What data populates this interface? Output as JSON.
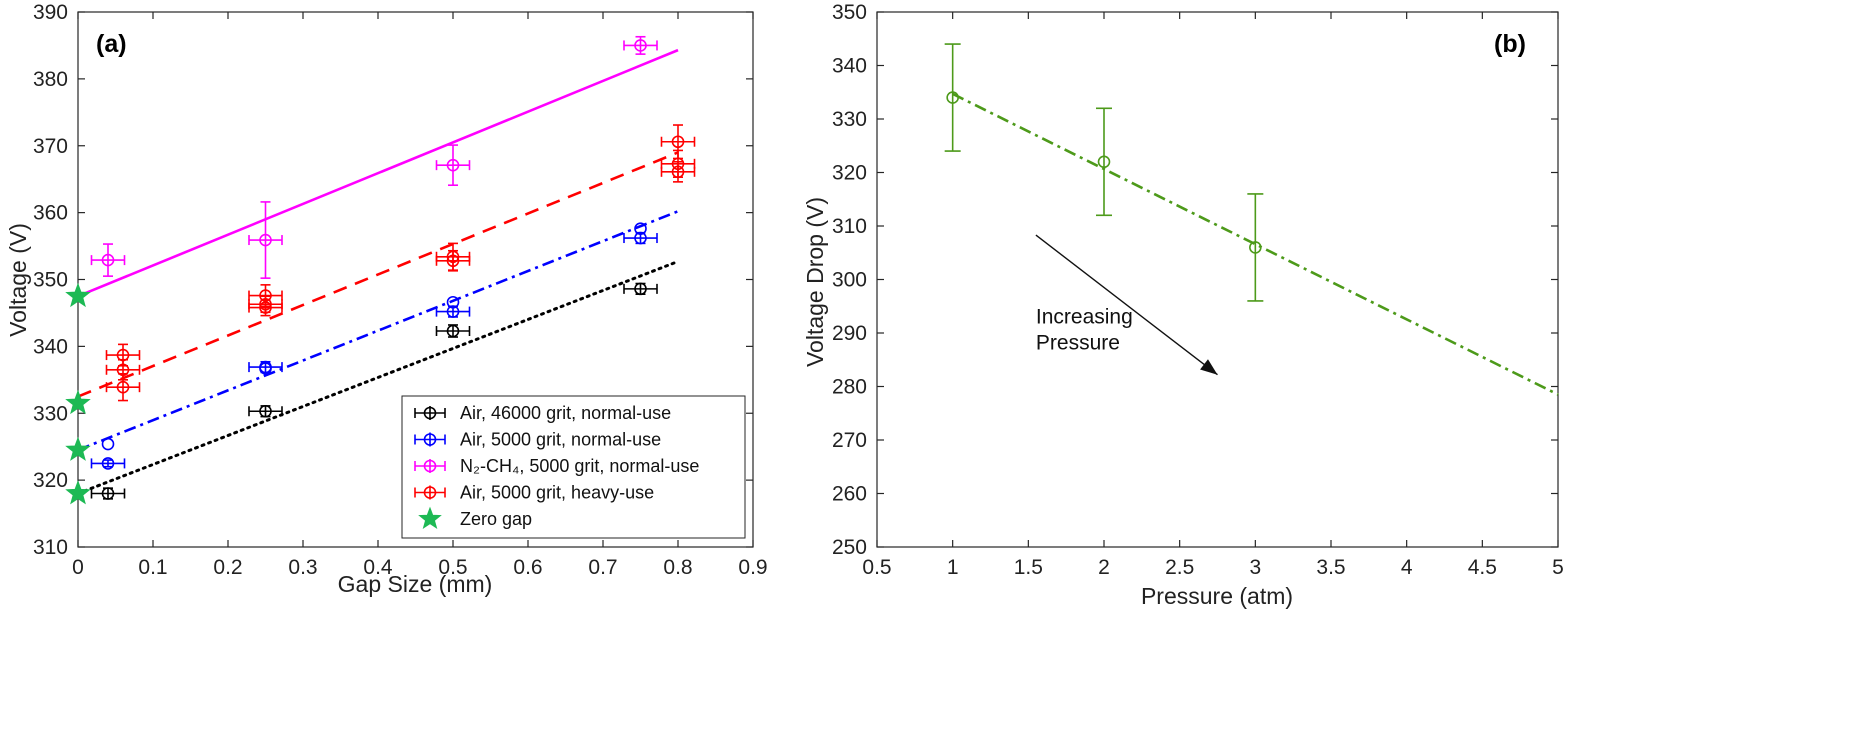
{
  "chart_data": [
    {
      "type": "scatter",
      "panel_label": "(a)",
      "xlabel": "Gap Size (mm)",
      "ylabel": "Voltage (V)",
      "xlim": [
        0,
        0.9
      ],
      "ylim": [
        310,
        390
      ],
      "xticks": [
        "0",
        "0.1",
        "0.2",
        "0.3",
        "0.4",
        "0.5",
        "0.6",
        "0.7",
        "0.8",
        "0.9"
      ],
      "yticks": [
        "310",
        "320",
        "330",
        "340",
        "350",
        "360",
        "370",
        "380",
        "390"
      ],
      "grid": false,
      "legend_position": "bottom-right",
      "series": [
        {
          "name": "Air, 46000 grit, normal-use",
          "color": "#000000",
          "marker": "circle",
          "points": [
            {
              "x": 0.04,
              "y": 318.0,
              "xerr": 0.022,
              "yerr": 0.8
            },
            {
              "x": 0.25,
              "y": 330.3,
              "xerr": 0.022,
              "yerr": 0.8
            },
            {
              "x": 0.5,
              "y": 342.3,
              "xerr": 0.022,
              "yerr": 0.9
            },
            {
              "x": 0.75,
              "y": 348.6,
              "xerr": 0.022,
              "yerr": 0.8
            }
          ],
          "fit": {
            "style": "dotted",
            "x": [
              0,
              0.8
            ],
            "y": [
              318.0,
              352.7
            ]
          }
        },
        {
          "name": "Air, 5000 grit, normal-use",
          "color": "#0000ff",
          "marker": "circle",
          "points": [
            {
              "x": 0.04,
              "y": 325.4,
              "xerr": 0,
              "yerr": 0
            },
            {
              "x": 0.04,
              "y": 322.5,
              "xerr": 0.022,
              "yerr": 0.5
            },
            {
              "x": 0.25,
              "y": 336.9,
              "xerr": 0.022,
              "yerr": 0.8
            },
            {
              "x": 0.25,
              "y": 336.7,
              "xerr": 0,
              "yerr": 0
            },
            {
              "x": 0.5,
              "y": 346.6,
              "xerr": 0,
              "yerr": 0
            },
            {
              "x": 0.5,
              "y": 345.2,
              "xerr": 0.022,
              "yerr": 0.8
            },
            {
              "x": 0.75,
              "y": 357.6,
              "xerr": 0,
              "yerr": 0
            },
            {
              "x": 0.75,
              "y": 356.2,
              "xerr": 0.022,
              "yerr": 0.8
            }
          ],
          "fit": {
            "style": "dashdot",
            "x": [
              0,
              0.8
            ],
            "y": [
              324.5,
              360.2
            ]
          }
        },
        {
          "name": "N₂-CH₄, 5000 grit, normal-use",
          "color": "#ff00ff",
          "marker": "circle",
          "points": [
            {
              "x": 0.04,
              "y": 352.9,
              "xerr": 0.022,
              "yerr": 2.4
            },
            {
              "x": 0.25,
              "y": 355.9,
              "xerr": 0.022,
              "yerr": 5.7
            },
            {
              "x": 0.5,
              "y": 367.1,
              "xerr": 0.022,
              "yerr": 3.0
            },
            {
              "x": 0.75,
              "y": 385.0,
              "xerr": 0.022,
              "yerr": 1.3
            }
          ],
          "fit": {
            "style": "solid",
            "x": [
              0,
              0.8
            ],
            "y": [
              347.5,
              384.3
            ]
          }
        },
        {
          "name": "Air, 5000 grit, heavy-use",
          "color": "#ff0000",
          "marker": "circle",
          "points": [
            {
              "x": 0.06,
              "y": 338.7,
              "xerr": 0.022,
              "yerr": 1.6
            },
            {
              "x": 0.06,
              "y": 336.5,
              "xerr": 0.022,
              "yerr": 1.5
            },
            {
              "x": 0.06,
              "y": 333.9,
              "xerr": 0.022,
              "yerr": 2.0
            },
            {
              "x": 0.25,
              "y": 347.6,
              "xerr": 0.022,
              "yerr": 1.6
            },
            {
              "x": 0.25,
              "y": 346.3,
              "xerr": 0.022,
              "yerr": 1.2
            },
            {
              "x": 0.25,
              "y": 345.8,
              "xerr": 0.022,
              "yerr": 1.2
            },
            {
              "x": 0.5,
              "y": 353.4,
              "xerr": 0.022,
              "yerr": 2.0
            },
            {
              "x": 0.5,
              "y": 352.8,
              "xerr": 0.022,
              "yerr": 1.5
            },
            {
              "x": 0.8,
              "y": 370.6,
              "xerr": 0.022,
              "yerr": 2.5
            },
            {
              "x": 0.8,
              "y": 367.3,
              "xerr": 0.022,
              "yerr": 2.0
            },
            {
              "x": 0.8,
              "y": 366.1,
              "xerr": 0.022,
              "yerr": 1.5
            }
          ],
          "fit": {
            "style": "dashed",
            "x": [
              0,
              0.8
            ],
            "y": [
              332.5,
              369.0
            ]
          }
        },
        {
          "name": "Zero gap",
          "color": "#1db954",
          "marker": "star",
          "points": [
            {
              "x": 0,
              "y": 347.5
            },
            {
              "x": 0,
              "y": 331.5
            },
            {
              "x": 0,
              "y": 324.5
            },
            {
              "x": 0,
              "y": 318.0
            }
          ]
        }
      ]
    },
    {
      "type": "line",
      "panel_label": "(b)",
      "xlabel": "Pressure (atm)",
      "ylabel": "Voltage Drop (V)",
      "xlim": [
        0.5,
        5
      ],
      "ylim": [
        250,
        350
      ],
      "xticks": [
        "0.5",
        "1",
        "1.5",
        "2",
        "2.5",
        "3",
        "3.5",
        "4",
        "4.5",
        "5"
      ],
      "yticks": [
        "250",
        "260",
        "270",
        "280",
        "290",
        "300",
        "310",
        "320",
        "330",
        "340",
        "350"
      ],
      "grid": false,
      "series": [
        {
          "color": "#4d9a1a",
          "marker": "circle",
          "points": [
            {
              "x": 1,
              "y": 334,
              "yerr": 10
            },
            {
              "x": 2,
              "y": 322,
              "yerr": 10
            },
            {
              "x": 3,
              "y": 306,
              "yerr": 10
            }
          ],
          "fit": {
            "style": "dashdot",
            "x": [
              1,
              5
            ],
            "y": [
              334.7,
              278.5
            ]
          }
        }
      ],
      "annotation": {
        "lines": [
          "Increasing",
          "Pressure"
        ],
        "arrow_from": {
          "x": 1.55,
          "y": 308.3
        },
        "arrow_to": {
          "x": 2.75,
          "y": 282.2
        },
        "text_at": {
          "x": 1.55,
          "y": 291.8
        }
      }
    }
  ]
}
